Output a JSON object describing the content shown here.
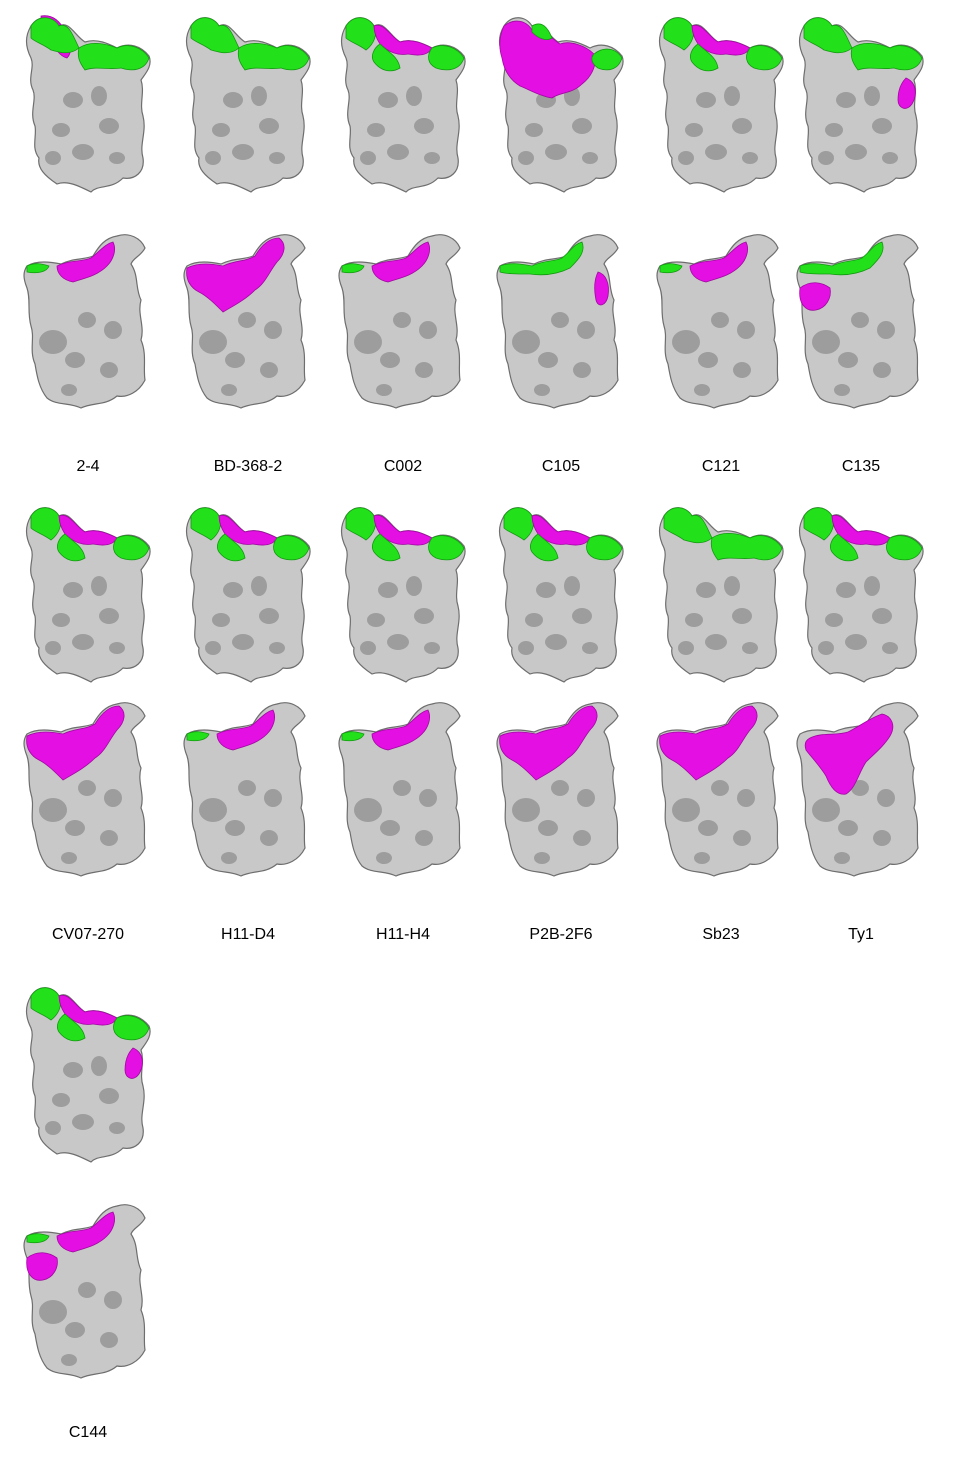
{
  "colors": {
    "surface": "#c8c8c8",
    "surface_shade": "#8f8f8f",
    "surface_dark": "#6e6e6e",
    "green": "#22e11b",
    "magenta": "#e30fe3"
  },
  "panels": [
    {
      "label": "2-4",
      "top": "magenta-left,green",
      "bottom": "magenta-top"
    },
    {
      "label": "BD-368-2",
      "top": "green",
      "bottom": "magenta-top-large"
    },
    {
      "label": "C002",
      "top": "green-magenta",
      "bottom": "magenta-top"
    },
    {
      "label": "C105",
      "top": "magenta-large",
      "bottom": "green-top,magenta-right"
    },
    {
      "label": "C121",
      "top": "green-magenta",
      "bottom": "magenta-top"
    },
    {
      "label": "C135",
      "top": "green,magenta-right",
      "bottom": "green-top,magenta-left"
    },
    {
      "label": "CV07-270",
      "top": "green-magenta",
      "bottom": "magenta-top-large"
    },
    {
      "label": "H11-D4",
      "top": "green-magenta",
      "bottom": "magenta-top"
    },
    {
      "label": "H11-H4",
      "top": "green-magenta",
      "bottom": "magenta-top"
    },
    {
      "label": "P2B-2F6",
      "top": "green-magenta",
      "bottom": "magenta-top-large"
    },
    {
      "label": "Sb23",
      "top": "green",
      "bottom": "magenta-top-large"
    },
    {
      "label": "Ty1",
      "top": "green-magenta",
      "bottom": "magenta-center-large"
    },
    {
      "label": "C144",
      "top": "green-magenta,magenta-right",
      "bottom": "magenta-top,magenta-left"
    }
  ]
}
